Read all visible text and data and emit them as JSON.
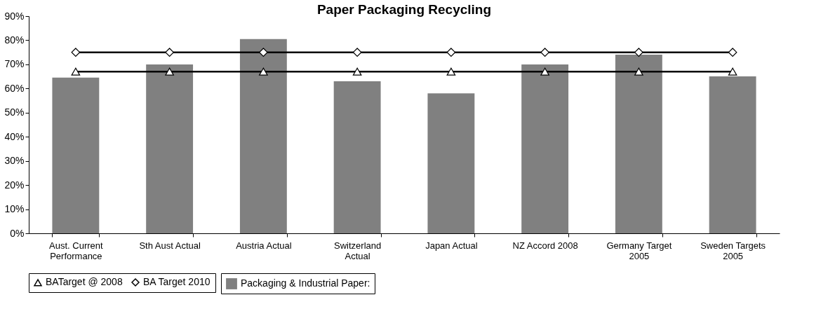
{
  "chart_data": {
    "type": "bar",
    "title": "Paper Packaging Recycling",
    "categories": [
      "Aust. Current Performance",
      "Sth Aust Actual",
      "Austria Actual",
      "Switzerland Actual",
      "Japan Actual",
      "NZ Accord 2008",
      "Germany Target 2005",
      "Sweden Targets 2005"
    ],
    "series": [
      {
        "name": "Packaging & Industrial Paper:",
        "color": "#808080",
        "values": [
          64.5,
          70,
          80.5,
          63,
          58,
          70,
          74,
          65
        ]
      },
      {
        "name": "BATarget @ 2008",
        "type": "line",
        "color": "#000000",
        "marker": "triangle",
        "values": [
          67,
          67,
          67,
          67,
          67,
          67,
          67,
          67
        ]
      },
      {
        "name": "BA Target 2010",
        "type": "line",
        "color": "#000000",
        "marker": "diamond",
        "values": [
          75,
          75,
          75,
          75,
          75,
          75,
          75,
          75
        ]
      }
    ],
    "ylim": [
      0,
      90
    ],
    "yticks": [
      {
        "value": 0,
        "label": "0%"
      },
      {
        "value": 10,
        "label": "10%"
      },
      {
        "value": 20,
        "label": "20%"
      },
      {
        "value": 30,
        "label": "30%"
      },
      {
        "value": 40,
        "label": "40%"
      },
      {
        "value": 50,
        "label": "50%"
      },
      {
        "value": 60,
        "label": "60%"
      },
      {
        "value": 70,
        "label": "70%"
      },
      {
        "value": 80,
        "label": "80%"
      },
      {
        "value": 90,
        "label": "90%"
      }
    ],
    "grid": false,
    "legend": "bottom"
  }
}
